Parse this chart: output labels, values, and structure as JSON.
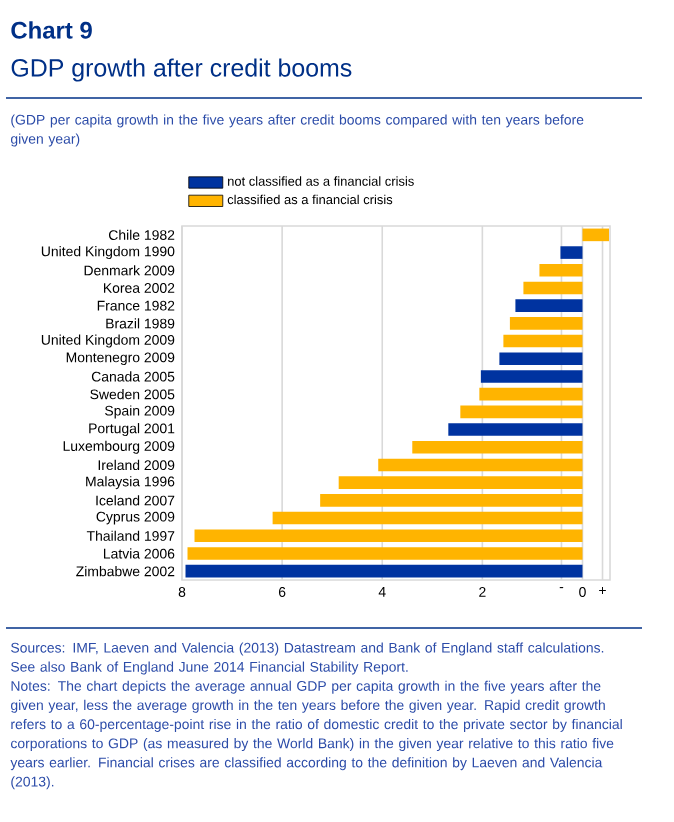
{
  "chart_data": {
    "type": "bar",
    "orientation": "horizontal",
    "title": "Chart 9",
    "subtitle": "GDP growth after credit booms",
    "annotations": [
      "(GDP per capita growth in the five years after credit booms compared with ten years before given year)",
      "Sources: IMF, Laeven and Valencia (2013) Datastream and Bank of England staff calculations. See also Bank of England June 2014 Financial Stability Report.",
      "Notes: The chart depicts the average annual GDP per capita growth in the five years after the given year, less the average growth in the ten years before the given year. Rapid credit growth refers to a 60-percentage-point rise in the ratio of domestic credit to the private sector by financial corporations to GDP (as measured by the World Bank) in the given year relative to this ratio five years earlier. Financial crises are classified according to the definition by Laeven and Valencia (2013)."
    ],
    "categories": [
      "Chile 1982",
      "United Kingdom 1990",
      "Denmark 2009",
      "Korea 2002",
      "France 1982",
      "Brazil 1989",
      "United Kingdom 2009",
      "Montenegro 2009",
      "Canada 2005",
      "Sweden 2005",
      "Spain 2009",
      "Portugal 2001",
      "Luxembourg 2009",
      "Ireland 2009",
      "Malaysia 1996",
      "Iceland 2007",
      "Cyprus 2009",
      "Thailand 1997",
      "Latvia 2006",
      "Zimbabwe 2002"
    ],
    "series": [
      {
        "name": "not classified as a financial crisis",
        "color": "#0033a0",
        "values": [
          null,
          -0.44,
          null,
          null,
          -1.34,
          null,
          null,
          -1.66,
          -2.03,
          null,
          null,
          -2.68,
          null,
          null,
          null,
          null,
          null,
          null,
          null,
          -7.93
        ]
      },
      {
        "name": "classified as a financial crisis",
        "color": "#ffb400",
        "values": [
          0.53,
          null,
          -0.86,
          -1.18,
          null,
          -1.45,
          -1.58,
          null,
          null,
          -2.06,
          -2.44,
          null,
          -3.4,
          -4.08,
          -4.87,
          -5.24,
          -6.19,
          -7.75,
          -7.89,
          null
        ]
      }
    ],
    "xlim": [
      -8,
      0.55
    ],
    "xticks": [
      {
        "value": -8,
        "label": "8"
      },
      {
        "value": -6,
        "label": "6"
      },
      {
        "value": -4,
        "label": "4"
      },
      {
        "value": -2,
        "label": "2"
      },
      {
        "value": -0.42,
        "label": "-"
      },
      {
        "value": 0,
        "label": "0"
      },
      {
        "value": 0.4,
        "label": "+"
      }
    ],
    "grid": "x",
    "legend": "top"
  }
}
